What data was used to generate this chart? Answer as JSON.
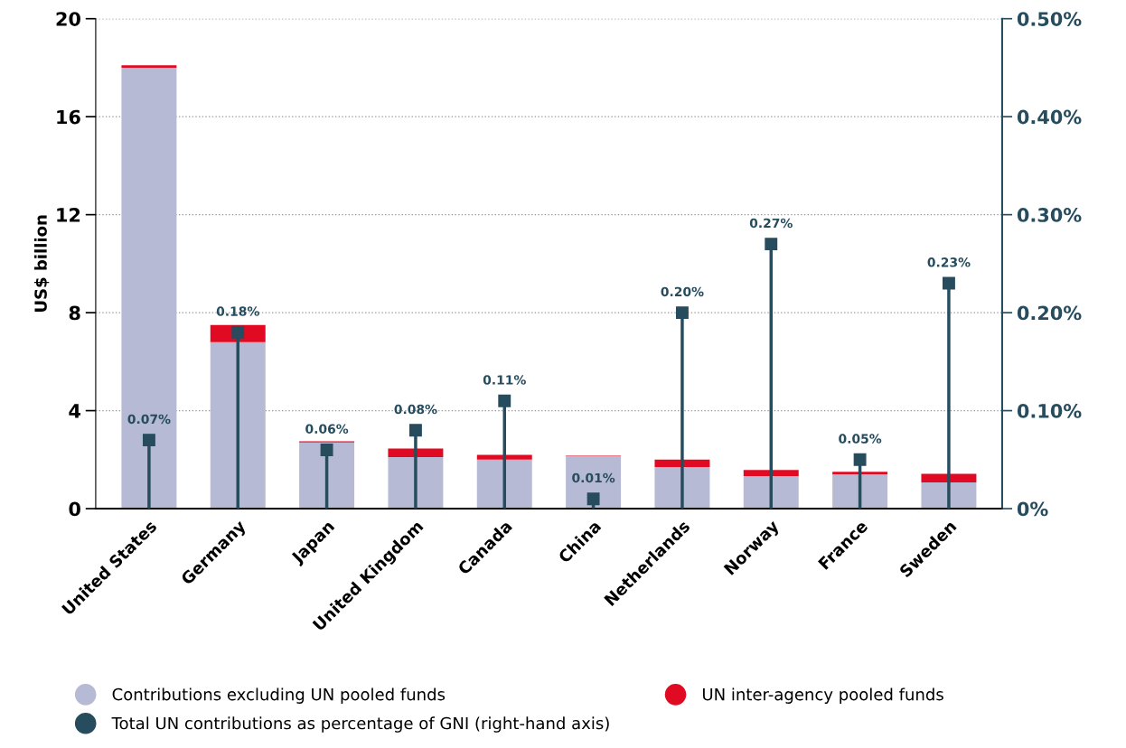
{
  "chart_data": {
    "type": "bar",
    "stacked": true,
    "ylabel": "US$ billion",
    "categories": [
      "United States",
      "Germany",
      "Japan",
      "United Kingdom",
      "Canada",
      "China",
      "Netherlands",
      "Norway",
      "France",
      "Sweden"
    ],
    "series": [
      {
        "name": "Contributions excluding UN pooled funds",
        "color": "#b6bad5",
        "values": [
          18.0,
          6.8,
          2.7,
          2.1,
          2.0,
          2.15,
          1.7,
          1.33,
          1.4,
          1.07
        ]
      },
      {
        "name": "UN inter-agency pooled funds",
        "color": "#e00b22",
        "values": [
          0.1,
          0.7,
          0.05,
          0.35,
          0.2,
          0.02,
          0.3,
          0.25,
          0.1,
          0.35
        ]
      },
      {
        "name": "Total UN contributions as percentage of GNI (right-hand axis)",
        "type": "lollipop",
        "axis": "y2",
        "color": "#264c5e",
        "marker": "square",
        "values": [
          0.07,
          0.18,
          0.06,
          0.08,
          0.11,
          0.01,
          0.2,
          0.27,
          0.05,
          0.23
        ],
        "value_labels": [
          "0.07%",
          "0.18%",
          "0.06%",
          "0.08%",
          "0.11%",
          "0.01%",
          "0.20%",
          "0.27%",
          "0.05%",
          "0.23%"
        ]
      }
    ],
    "ylim": [
      0,
      20
    ],
    "yticks": [
      0,
      4,
      8,
      12,
      16,
      20
    ],
    "y2lim": [
      0,
      0.5
    ],
    "y2ticks": [
      {
        "value": 0,
        "label": "0%"
      },
      {
        "value": 0.1,
        "label": "0.10%"
      },
      {
        "value": 0.2,
        "label": "0.20%"
      },
      {
        "value": 0.3,
        "label": "0.30%"
      },
      {
        "value": 0.4,
        "label": "0.40%"
      },
      {
        "value": 0.5,
        "label": "0.50%"
      }
    ],
    "grid": "y",
    "legend": "bottom"
  }
}
